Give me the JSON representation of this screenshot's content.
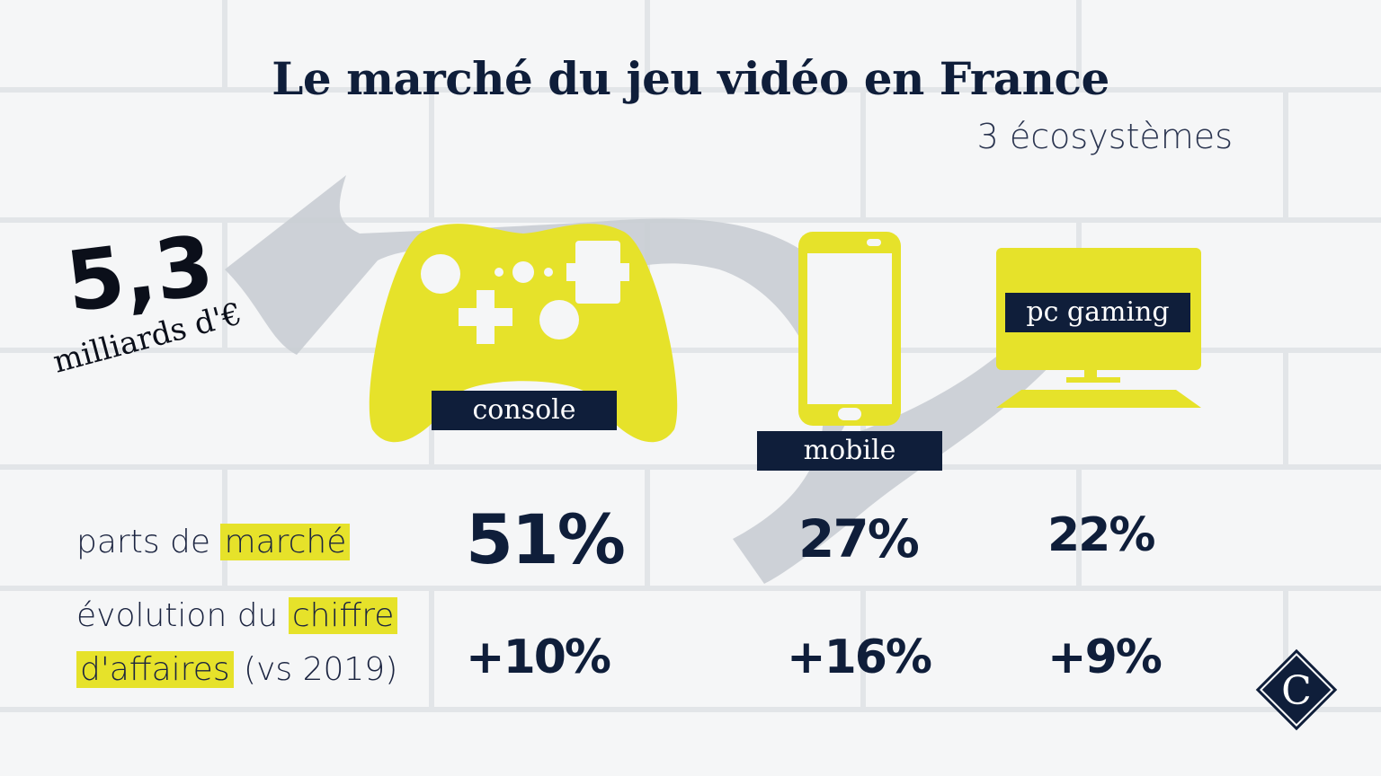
{
  "title": "Le marché du jeu vidéo en France",
  "subtitle": "3 écosystèmes",
  "total": {
    "value": "5,3",
    "unit": "milliards d'€"
  },
  "segments": [
    {
      "label": "console",
      "icon": "gamepad-icon",
      "share": "51%",
      "growth": "+10%"
    },
    {
      "label": "mobile",
      "icon": "smartphone-icon",
      "share": "27%",
      "growth": "+16%"
    },
    {
      "label": "pc gaming",
      "icon": "monitor-icon",
      "share": "22%",
      "growth": "+9%"
    }
  ],
  "rows": {
    "share": {
      "prefix": "parts de ",
      "highlight": "marché"
    },
    "growth": {
      "prefix": "évolution du ",
      "highlight1": "chiffre",
      "highlight2": "d'affaires",
      "suffix": " (vs 2019)"
    }
  },
  "logo_letter": "C",
  "colors": {
    "navy": "#0f1e3a",
    "yellow": "#e6e22a",
    "arrow_gray": "#c9cdd3",
    "background": "#f5f6f7"
  }
}
